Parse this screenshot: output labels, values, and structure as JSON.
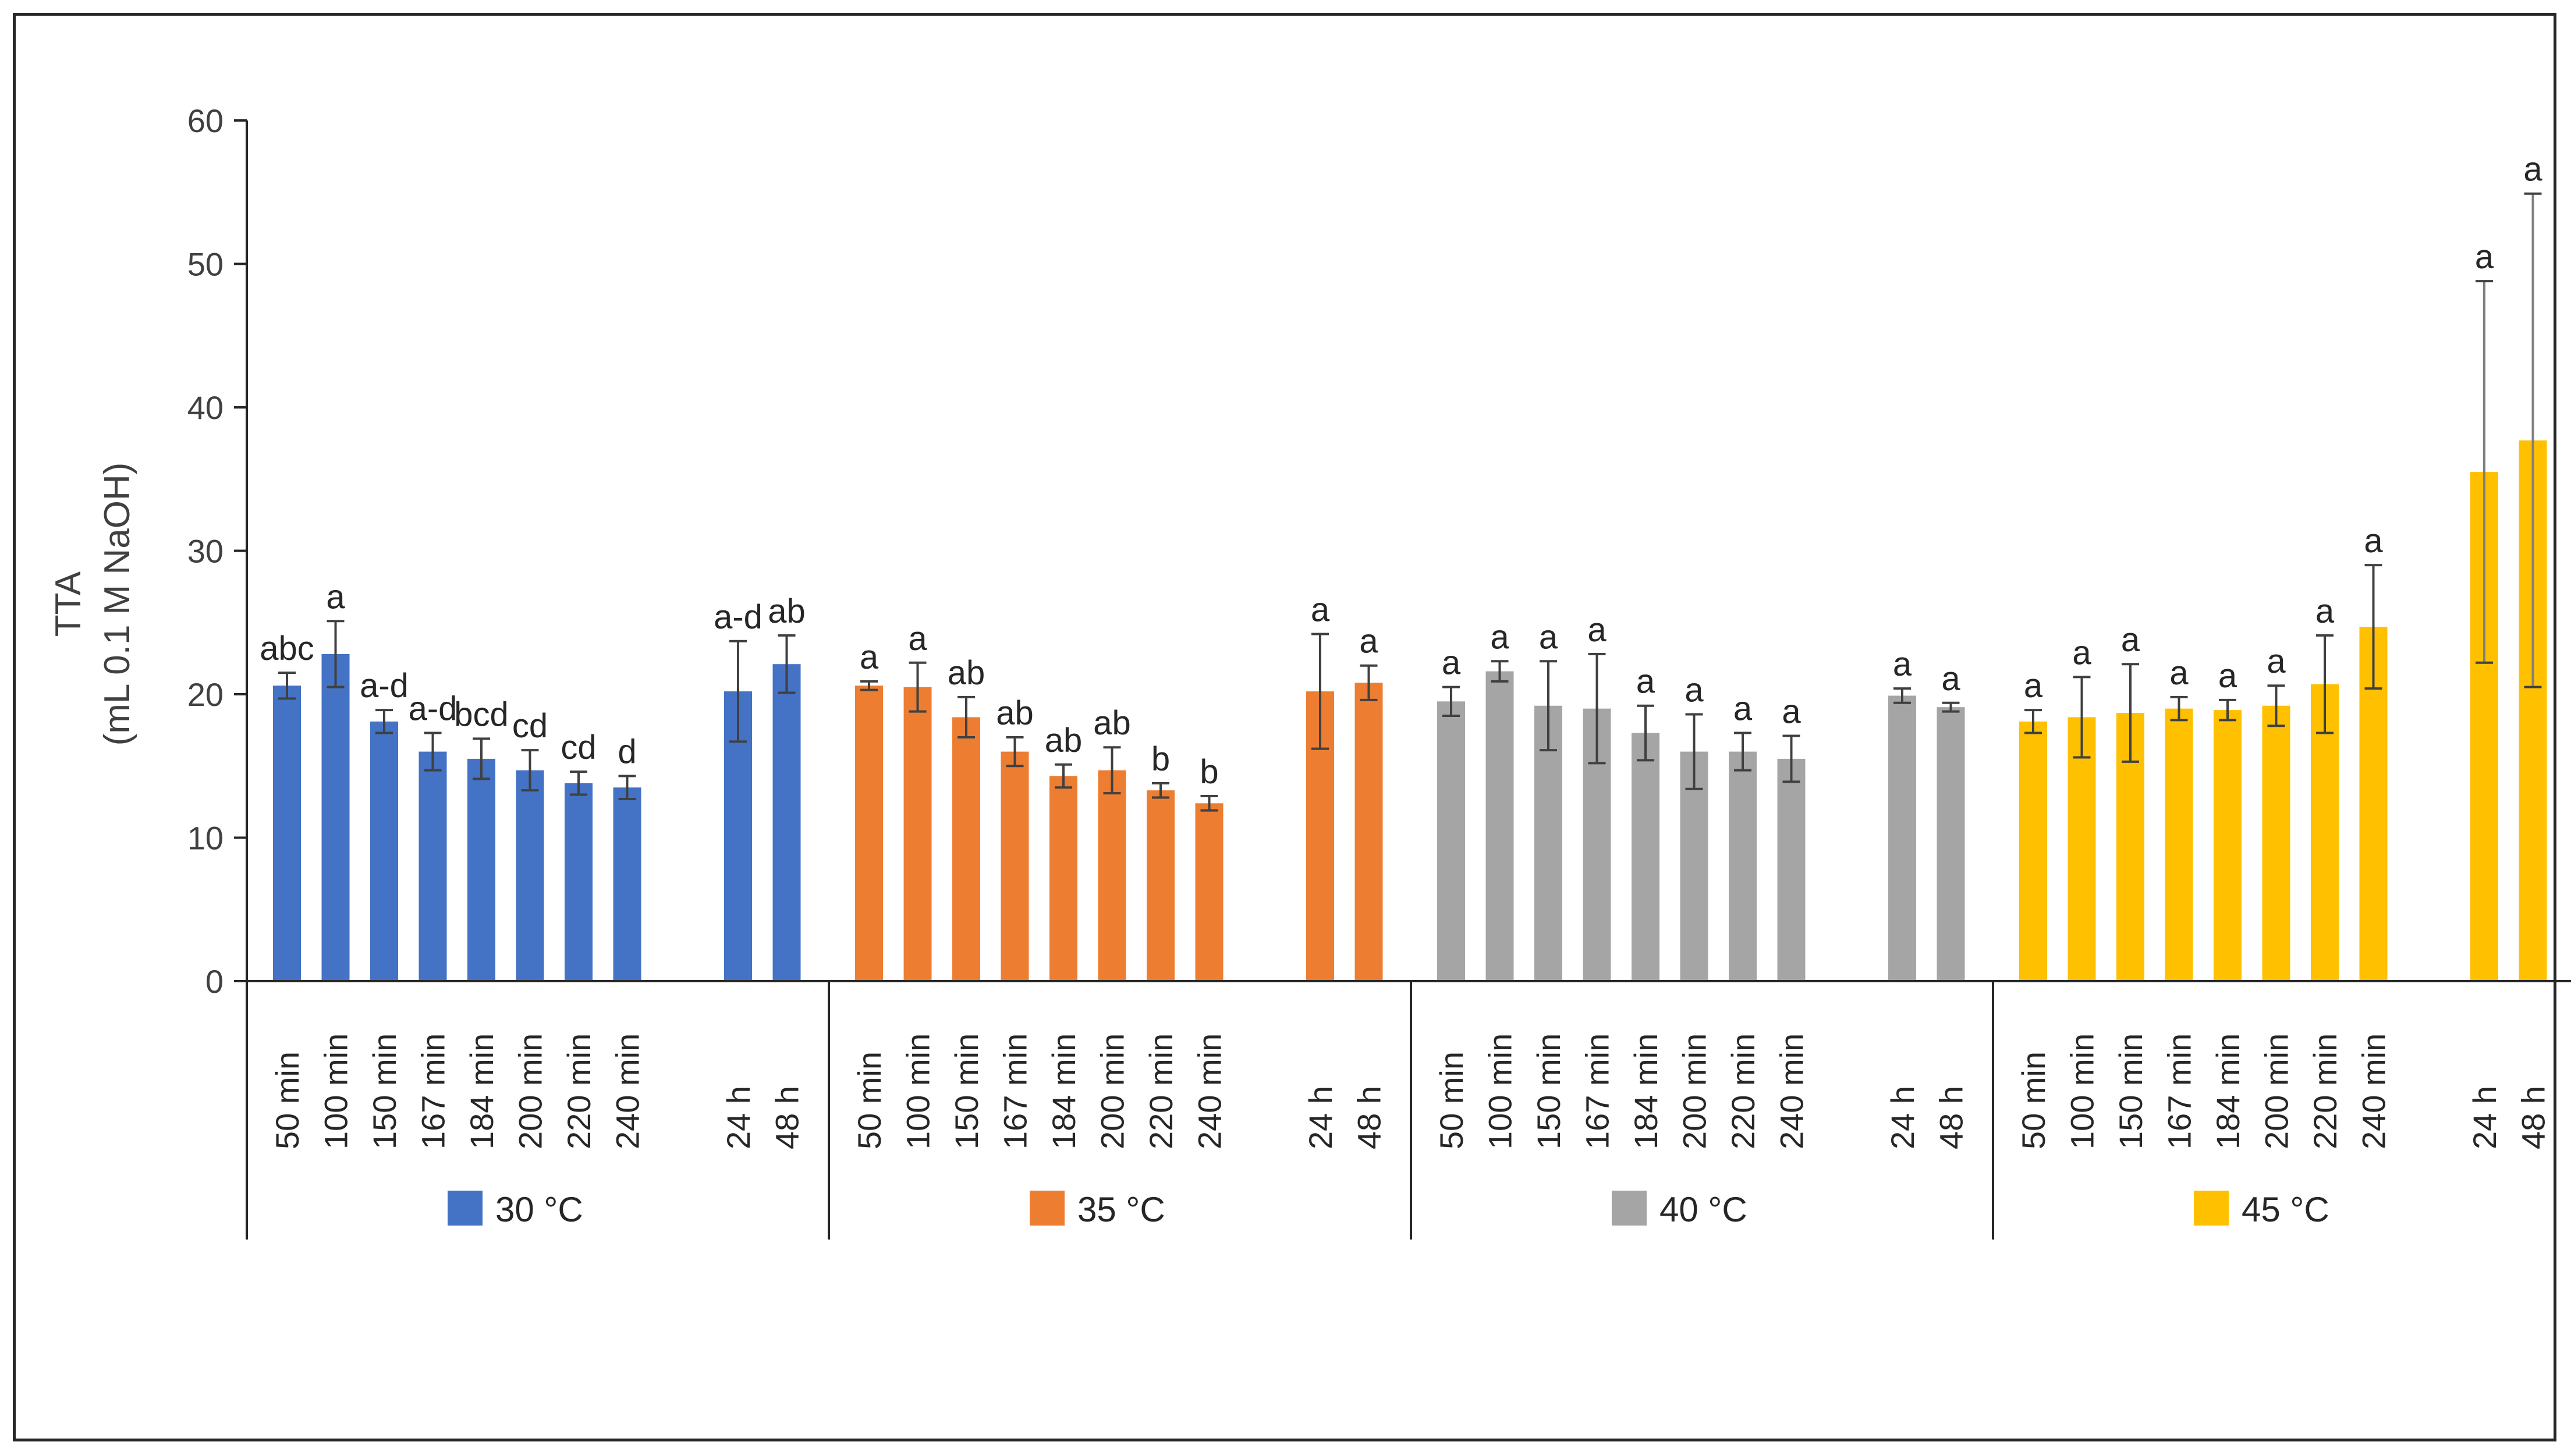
{
  "chart_data": {
    "type": "bar",
    "title": "",
    "ylabel_line1": "TTA",
    "ylabel_line2": "(mL 0.1 M NaOH)",
    "ylim": [
      0,
      60
    ],
    "yticks": [
      "0",
      "10",
      "20",
      "30",
      "40",
      "50",
      "60"
    ],
    "grid": false,
    "categories": [
      "50 min",
      "100 min",
      "150 min",
      "167 min",
      "184 min",
      "200 min",
      "220 min",
      "240 min",
      "24 h",
      "48 h"
    ],
    "series": [
      {
        "name": "30 °C",
        "color": "#4472C4",
        "values": [
          20.6,
          22.8,
          18.1,
          16.0,
          15.5,
          14.7,
          13.8,
          13.5,
          20.2,
          22.1
        ],
        "errors": [
          0.9,
          2.3,
          0.8,
          1.3,
          1.4,
          1.4,
          0.8,
          0.8,
          3.5,
          2.0
        ],
        "letters": [
          "abc",
          "a",
          "a-d",
          "a-d",
          "bcd",
          "cd",
          "cd",
          "d",
          "a-d",
          "ab"
        ]
      },
      {
        "name": "35 °C",
        "color": "#ED7D31",
        "values": [
          20.6,
          20.5,
          18.4,
          16.0,
          14.3,
          14.7,
          13.3,
          12.4,
          20.2,
          20.8
        ],
        "errors": [
          0.3,
          1.7,
          1.4,
          1.0,
          0.8,
          1.6,
          0.5,
          0.5,
          4.0,
          1.2
        ],
        "letters": [
          "a",
          "a",
          "ab",
          "ab",
          "ab",
          "ab",
          "b",
          "b",
          "a",
          "a"
        ]
      },
      {
        "name": "40 °C",
        "color": "#A5A5A5",
        "values": [
          19.5,
          21.6,
          19.2,
          19.0,
          17.3,
          16.0,
          16.0,
          15.5,
          19.9,
          19.1
        ],
        "errors": [
          1.0,
          0.7,
          3.1,
          3.8,
          1.9,
          2.6,
          1.3,
          1.6,
          0.5,
          0.3
        ],
        "letters": [
          "a",
          "a",
          "a",
          "a",
          "a",
          "a",
          "a",
          "a",
          "a",
          "a"
        ]
      },
      {
        "name": "45 °C",
        "color": "#FFC000",
        "values": [
          18.1,
          18.4,
          18.7,
          19.0,
          18.9,
          19.2,
          20.7,
          24.7,
          35.5,
          37.7
        ],
        "errors": [
          0.8,
          2.8,
          3.4,
          0.8,
          0.7,
          1.4,
          3.4,
          4.3,
          13.3,
          17.2
        ],
        "letters": [
          "a",
          "a",
          "a",
          "a",
          "a",
          "a",
          "a",
          "a",
          "a",
          "a"
        ]
      }
    ]
  }
}
